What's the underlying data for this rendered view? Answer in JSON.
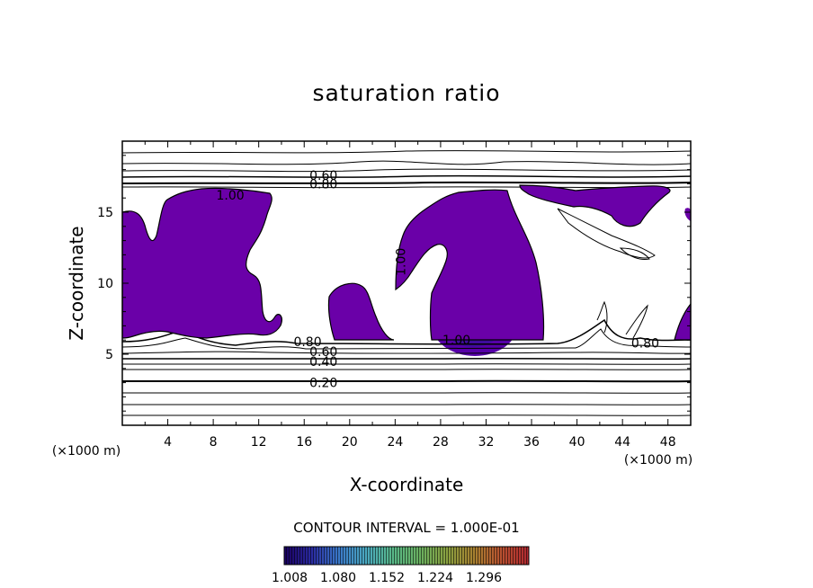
{
  "chart_data": {
    "type": "contour",
    "title": "saturation ratio",
    "xlabel": "X-coordinate",
    "ylabel": "Z-coordinate",
    "x_unit": "(×1000 m)",
    "y_unit": "(×1000 m)",
    "xlim": [
      0,
      50
    ],
    "ylim": [
      0,
      20
    ],
    "x_ticks": [
      4,
      8,
      12,
      16,
      20,
      24,
      28,
      32,
      36,
      40,
      44,
      48
    ],
    "y_ticks": [
      5,
      10,
      15
    ],
    "contour_labels": [
      {
        "text": "0.60",
        "x": 17.7,
        "y": 17.6
      },
      {
        "text": "0.80",
        "x": 17.7,
        "y": 17.0
      },
      {
        "text": "1.00",
        "x": 9.5,
        "y": 16.2
      },
      {
        "text": "1.00",
        "x": 24.5,
        "y": 11.5
      },
      {
        "text": "1.00",
        "x": 29.4,
        "y": 6.0
      },
      {
        "text": "0.80",
        "x": 16.3,
        "y": 5.9
      },
      {
        "text": "0.80",
        "x": 46.0,
        "y": 5.8
      },
      {
        "text": "0.60",
        "x": 17.7,
        "y": 5.2
      },
      {
        "text": "0.40",
        "x": 17.7,
        "y": 4.5
      },
      {
        "text": "0.20",
        "x": 17.7,
        "y": 3.0
      }
    ],
    "contour_interval_label": "CONTOUR INTERVAL = 1.000E-01",
    "fill_threshold": 1.0,
    "fill_color": "#6a00a8",
    "colorbar": {
      "tick_labels": [
        "1.008",
        "1.080",
        "1.152",
        "1.224",
        "1.296"
      ],
      "stops": [
        "#1a0060",
        "#2a2aa0",
        "#3a78c8",
        "#4aa8c0",
        "#58b888",
        "#6ab060",
        "#8aa040",
        "#a88030",
        "#b85030",
        "#b02830"
      ]
    },
    "grid": false
  }
}
